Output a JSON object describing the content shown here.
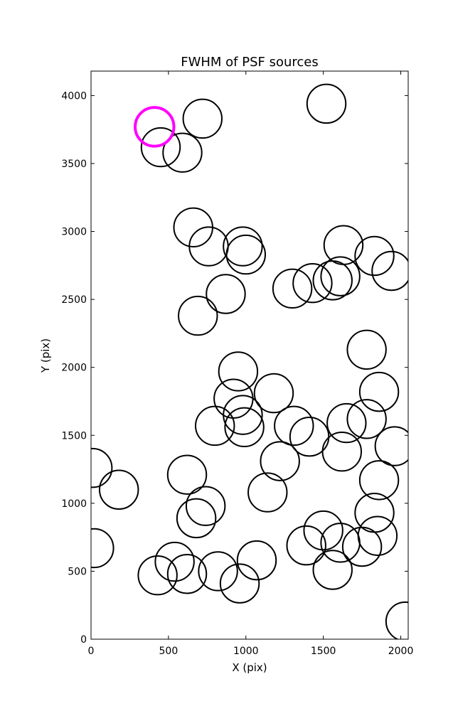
{
  "chart_data": {
    "type": "scatter",
    "title": "FWHM of PSF sources",
    "xlabel": "X (pix)",
    "ylabel": "Y (pix)",
    "xlim": [
      0,
      2048
    ],
    "ylim": [
      0,
      4180
    ],
    "xticks": [
      0,
      500,
      1000,
      1500,
      2000
    ],
    "yticks": [
      0,
      500,
      1000,
      1500,
      2000,
      2500,
      3000,
      3500,
      4000
    ],
    "grid": false,
    "marker": "open-circle",
    "circle_radius": 125,
    "series_color": "#000000",
    "highlight_color": "#ff00ff",
    "points": [
      [
        1520,
        3940
      ],
      [
        720,
        3830
      ],
      [
        450,
        3620
      ],
      [
        590,
        3580
      ],
      [
        660,
        3030
      ],
      [
        760,
        2890
      ],
      [
        980,
        2890
      ],
      [
        1000,
        2830
      ],
      [
        1630,
        2900
      ],
      [
        1830,
        2820
      ],
      [
        1940,
        2710
      ],
      [
        1300,
        2580
      ],
      [
        1430,
        2620
      ],
      [
        1560,
        2640
      ],
      [
        1610,
        2670
      ],
      [
        870,
        2540
      ],
      [
        690,
        2380
      ],
      [
        1780,
        2130
      ],
      [
        950,
        1970
      ],
      [
        1860,
        1820
      ],
      [
        1180,
        1810
      ],
      [
        920,
        1770
      ],
      [
        980,
        1650
      ],
      [
        990,
        1560
      ],
      [
        800,
        1570
      ],
      [
        1310,
        1570
      ],
      [
        1410,
        1490
      ],
      [
        1650,
        1590
      ],
      [
        1780,
        1620
      ],
      [
        1960,
        1420
      ],
      [
        1620,
        1380
      ],
      [
        1220,
        1310
      ],
      [
        10,
        1260
      ],
      [
        620,
        1210
      ],
      [
        180,
        1100
      ],
      [
        1140,
        1080
      ],
      [
        1860,
        1170
      ],
      [
        740,
        980
      ],
      [
        680,
        890
      ],
      [
        1830,
        930
      ],
      [
        1500,
        800
      ],
      [
        1390,
        690
      ],
      [
        1610,
        710
      ],
      [
        1750,
        680
      ],
      [
        1850,
        760
      ],
      [
        20,
        670
      ],
      [
        540,
        570
      ],
      [
        1070,
        580
      ],
      [
        430,
        470
      ],
      [
        620,
        480
      ],
      [
        820,
        500
      ],
      [
        960,
        410
      ],
      [
        1560,
        510
      ],
      [
        2030,
        130
      ]
    ],
    "highlight": [
      [
        410,
        3770
      ]
    ]
  }
}
